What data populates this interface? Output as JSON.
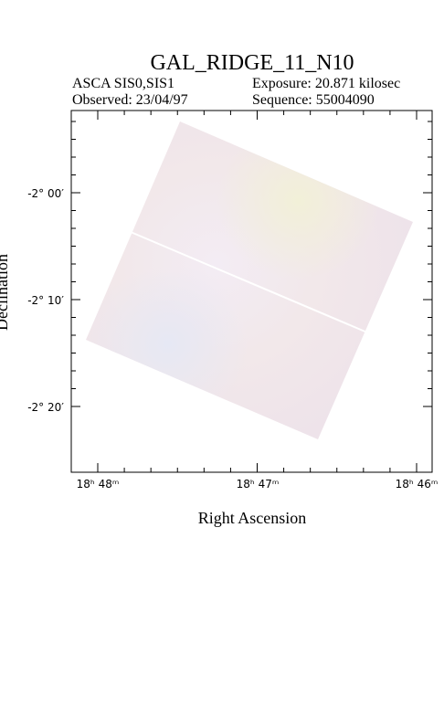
{
  "header": {
    "title": "GAL_RIDGE_11_N10",
    "instrument": "ASCA SIS0,SIS1",
    "exposure": "Exposure: 20.871 kilosec",
    "observed": "Observed: 23/04/97",
    "sequence": "Sequence: 55004090"
  },
  "axes": {
    "x_label": "Right Ascension",
    "y_label": "Declination",
    "x_ticks": [
      "18ʰ 48ᵐ",
      "18ʰ 47ᵐ",
      "18ʰ 46ᵐ"
    ],
    "y_ticks": [
      "-2° 00′",
      "-2° 10′",
      "-2° 20′"
    ]
  }
}
